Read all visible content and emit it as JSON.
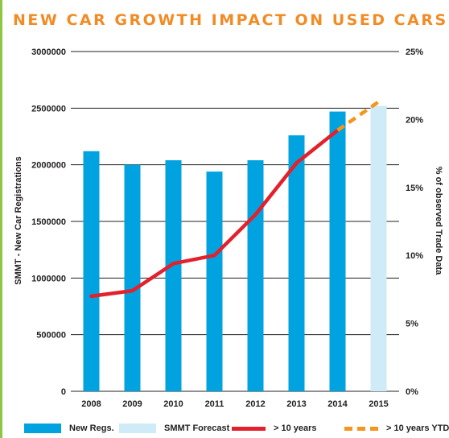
{
  "title": "NEW CAR GROWTH IMPACT ON USED CARS",
  "colors": {
    "title": "#f28b24",
    "left_rule": "#8dc63f",
    "new_regs": "#00a3e0",
    "forecast": "#cfebf8",
    "over10": "#e3202b",
    "over10_ytd": "#f7941d",
    "gridline": "#231f20"
  },
  "chart_data": {
    "type": "bar",
    "categories": [
      "2008",
      "2009",
      "2010",
      "2011",
      "2012",
      "2013",
      "2014",
      "2015"
    ],
    "series": [
      {
        "name": "New Regs.",
        "kind": "bar",
        "axis": "left",
        "values": [
          2120000,
          2000000,
          2040000,
          1940000,
          2040000,
          2260000,
          2470000,
          null
        ]
      },
      {
        "name": "SMMT Forecast",
        "kind": "bar",
        "axis": "left",
        "values": [
          null,
          null,
          null,
          null,
          null,
          null,
          null,
          2520000
        ]
      },
      {
        "name": "> 10 years",
        "kind": "line",
        "axis": "right",
        "values": [
          7.0,
          7.4,
          9.4,
          10.0,
          13.0,
          16.8,
          19.2,
          null
        ]
      },
      {
        "name": "> 10 years YTD",
        "kind": "dashed-line",
        "axis": "right",
        "values": [
          null,
          null,
          null,
          null,
          null,
          null,
          19.2,
          21.3
        ]
      }
    ],
    "ylabel": "SMMT - New Car Registrations",
    "y2label": "% of observed Trade Data",
    "ylim": [
      0,
      3000000
    ],
    "y2lim": [
      0,
      25
    ],
    "yticks": [
      "0",
      "500000",
      "1000000",
      "1500000",
      "2000000",
      "2500000",
      "3000000"
    ],
    "y2ticks": [
      "0%",
      "5%",
      "10%",
      "15%",
      "20%",
      "25%"
    ],
    "grid": true,
    "legend_position": "bottom"
  }
}
